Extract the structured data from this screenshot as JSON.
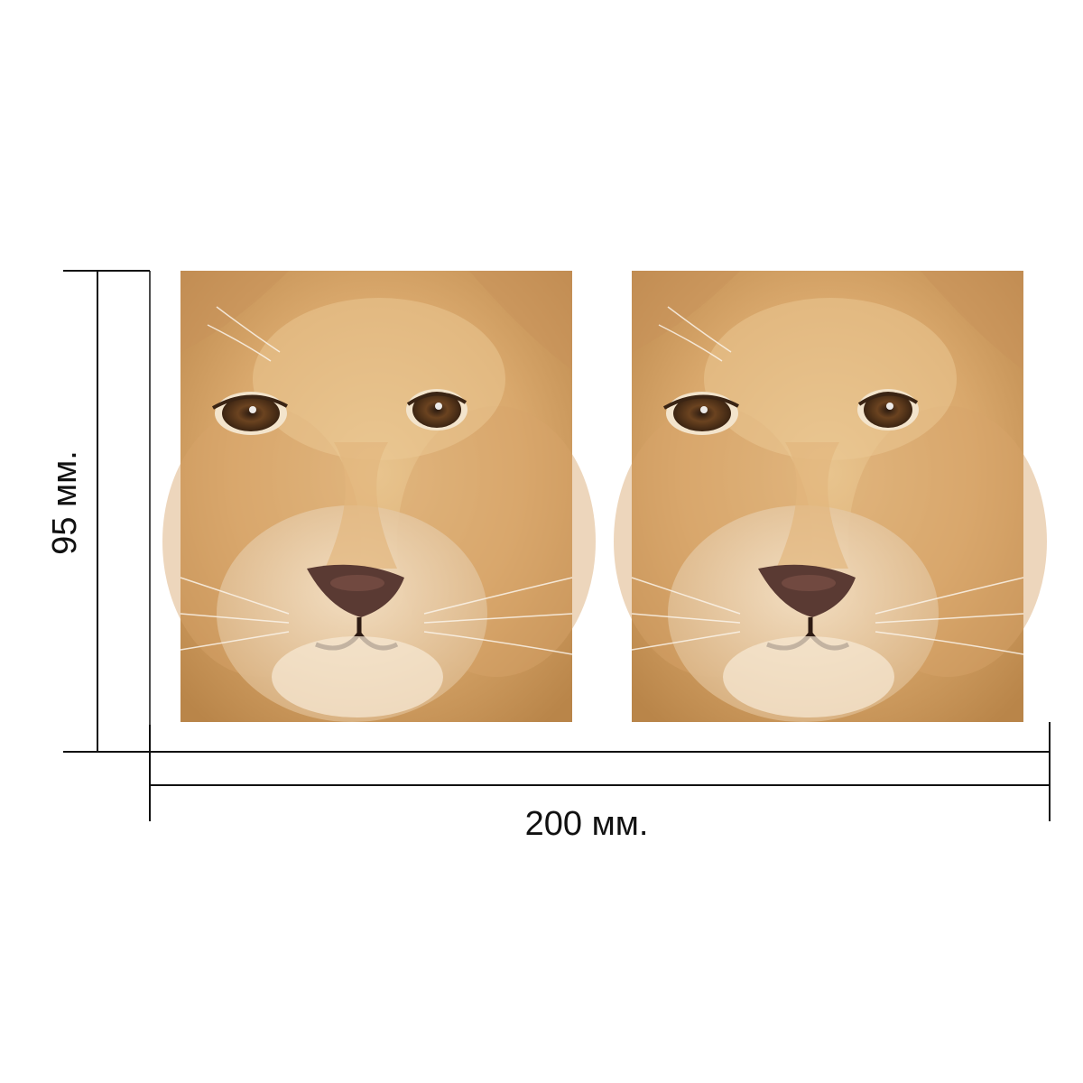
{
  "dimensions": {
    "height_label": "95 мм.",
    "width_label": "200 мм."
  },
  "colors": {
    "line": "#111111",
    "fur_light": "#e2b983",
    "fur_mid": "#cf9a5e",
    "fur_dark": "#a87440",
    "muzzle": "#f1dcc0",
    "nose": "#5a3a33",
    "iris": "#6b4320",
    "pupil": "#1c130d"
  },
  "images": [
    {
      "subject": "lion-cub-face"
    },
    {
      "subject": "lion-cub-face"
    }
  ]
}
